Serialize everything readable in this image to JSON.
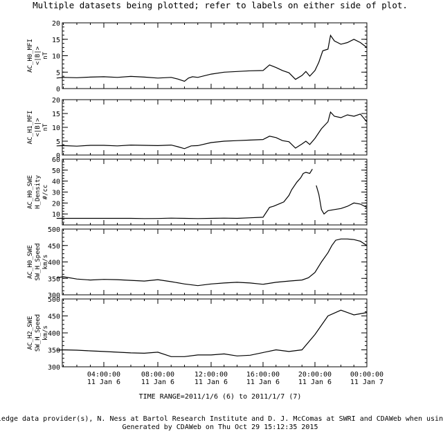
{
  "header": "Multiple datasets being plotted; refer to labels on either side of plot.",
  "time_range_label": "TIME RANGE=2011/1/6 (6) to 2011/1/7 (7)",
  "footer": [
    "acknowledge data provider(s), N. Ness at Bartol Research Institute and D. J. McComas at SWRI and CDAWeb when using thes",
    "Generated by CDAWeb on Thu Oct 29 15:12:35 2015"
  ],
  "x_ticks": [
    {
      "time": "04:00:00",
      "date": "11 Jan  6"
    },
    {
      "time": "08:00:00",
      "date": "11 Jan  6"
    },
    {
      "time": "12:00:00",
      "date": "11 Jan  6"
    },
    {
      "time": "16:00:00",
      "date": "11 Jan  6"
    },
    {
      "time": "20:00:00",
      "date": "11 Jan  6"
    },
    {
      "time": "00:00:00",
      "date": "11 Jan  7"
    }
  ],
  "chart_data": [
    {
      "type": "line",
      "ylabel": [
        "AC_H0_MFI",
        "<|B|>",
        "nT"
      ],
      "ylim": [
        0,
        20
      ],
      "yticks": [
        0,
        5,
        10,
        15,
        20
      ],
      "xlim": [
        0.5,
        24
      ],
      "series": [
        {
          "x": [
            0.5,
            1,
            2,
            3,
            4,
            5,
            6,
            7,
            8,
            9,
            9.5,
            10,
            10.3,
            10.6,
            11,
            12,
            13,
            14,
            15,
            16,
            16.5,
            17,
            17.5,
            18,
            18.5,
            19,
            19.3,
            19.6,
            20,
            20.3,
            20.6,
            21,
            21.2,
            21.5,
            22,
            22.5,
            23,
            23.5,
            24
          ],
          "y": [
            3.2,
            3.4,
            3.3,
            3.5,
            3.6,
            3.4,
            3.7,
            3.5,
            3.2,
            3.4,
            2.9,
            2.2,
            3.2,
            3.6,
            3.4,
            4.4,
            5.0,
            5.2,
            5.4,
            5.5,
            7.2,
            6.4,
            5.5,
            4.8,
            2.8,
            4.0,
            5.2,
            3.8,
            5.5,
            8.0,
            11.5,
            12.0,
            16.2,
            14.5,
            13.5,
            14.0,
            15.0,
            14.0,
            12.5
          ]
        }
      ]
    },
    {
      "type": "line",
      "ylabel": [
        "AC_H1_MFI",
        "<|B|>",
        "nT"
      ],
      "ylim": [
        0,
        20
      ],
      "yticks": [
        0,
        5,
        10,
        15,
        20
      ],
      "xlim": [
        0.5,
        24
      ],
      "series": [
        {
          "x": [
            0.5,
            1,
            2,
            3,
            4,
            5,
            6,
            7,
            8,
            9,
            9.5,
            10,
            10.5,
            11,
            12,
            13,
            14,
            15,
            16,
            16.5,
            17,
            17.5,
            18,
            18.5,
            19,
            19.3,
            19.6,
            20,
            20.5,
            21,
            21.2,
            21.5,
            22,
            22.5,
            23,
            23.5,
            24
          ],
          "y": [
            3.3,
            3.4,
            3.2,
            3.5,
            3.5,
            3.3,
            3.6,
            3.5,
            3.4,
            3.6,
            3.0,
            2.3,
            3.3,
            3.4,
            4.5,
            5.0,
            5.2,
            5.4,
            5.6,
            6.8,
            6.3,
            5.2,
            4.8,
            2.5,
            4.0,
            5.0,
            3.8,
            6.0,
            9.5,
            12.0,
            15.5,
            14.0,
            13.5,
            14.5,
            14.0,
            14.8,
            12.0
          ]
        }
      ]
    },
    {
      "type": "line",
      "ylabel": [
        "AC_H0_SWE",
        "H_Density",
        "#/cc"
      ],
      "ylim": [
        0,
        60
      ],
      "yticks": [
        10,
        20,
        30,
        40,
        50,
        60
      ],
      "xlim": [
        0.5,
        24
      ],
      "series": [
        {
          "x": [
            0.5,
            1,
            2,
            3,
            4,
            5,
            6,
            7,
            8,
            9,
            10,
            11,
            12,
            13,
            14,
            15,
            16,
            16.5,
            16.8,
            17.2,
            17.6,
            18,
            18.2,
            18.6,
            18.9,
            19.1,
            19.3,
            19.6,
            19.8
          ],
          "y": [
            6,
            6,
            6,
            6,
            6,
            6,
            6,
            5.8,
            5.9,
            6.2,
            6,
            5.8,
            6,
            6.2,
            6,
            6.5,
            7,
            16,
            17,
            19,
            21,
            27,
            32,
            39,
            43,
            47,
            48,
            47,
            51
          ]
        },
        {
          "x": [
            20.1,
            20.3,
            20.5,
            20.7,
            21,
            21.5,
            22,
            22.5,
            23,
            23.5,
            24
          ],
          "y": [
            36,
            28,
            14,
            10,
            13,
            14,
            15,
            17,
            20,
            19,
            16
          ]
        }
      ]
    },
    {
      "type": "line",
      "ylabel": [
        "AC_H0_SWE",
        "SW_H_Speed",
        "km/s"
      ],
      "ylim": [
        300,
        500
      ],
      "yticks": [
        300,
        350,
        400,
        450,
        500
      ],
      "xlim": [
        0.5,
        24
      ],
      "series": [
        {
          "x": [
            0.5,
            1,
            2,
            3,
            4,
            5,
            6,
            7,
            8,
            9,
            10,
            11,
            12,
            13,
            14,
            15,
            16,
            17,
            18,
            19,
            19.5,
            20,
            20.5,
            21,
            21.3,
            21.6,
            22,
            22.5,
            23,
            23.5,
            24
          ],
          "y": [
            352,
            355,
            348,
            345,
            347,
            346,
            344,
            342,
            346,
            340,
            333,
            328,
            333,
            336,
            338,
            336,
            332,
            338,
            342,
            345,
            352,
            368,
            400,
            428,
            450,
            466,
            470,
            470,
            468,
            463,
            450
          ]
        }
      ]
    },
    {
      "type": "line",
      "ylabel": [
        "AC_H2_SWE",
        "SW_H_Speed",
        "km/s"
      ],
      "ylim": [
        300,
        500
      ],
      "yticks": [
        300,
        350,
        400,
        450,
        500
      ],
      "xlim": [
        0.5,
        24
      ],
      "series": [
        {
          "x": [
            0.5,
            1,
            2,
            3,
            4,
            5,
            6,
            7,
            8,
            9,
            10,
            11,
            12,
            13,
            14,
            15,
            16,
            17,
            18,
            19,
            20,
            21,
            22,
            23,
            24
          ],
          "y": [
            349,
            350,
            349,
            347,
            345,
            343,
            341,
            340,
            343,
            330,
            330,
            335,
            335,
            338,
            332,
            334,
            342,
            350,
            345,
            350,
            395,
            450,
            467,
            453,
            460
          ]
        }
      ]
    }
  ]
}
